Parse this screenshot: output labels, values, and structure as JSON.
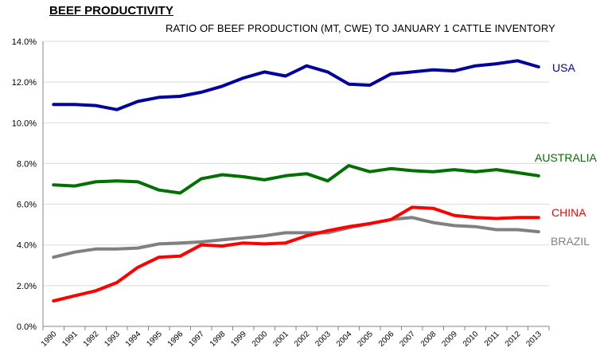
{
  "chart_data": {
    "type": "line",
    "title": "BEEF PRODUCTIVITY",
    "subtitle": "RATIO OF BEEF PRODUCTION (MT, CWE) TO JANUARY 1 CATTLE INVENTORY",
    "x": [
      "1990",
      "1991",
      "1992",
      "1993",
      "1994",
      "1995",
      "1996",
      "1997",
      "1998",
      "1999",
      "2000",
      "2001",
      "2002",
      "2003",
      "2004",
      "2005",
      "2006",
      "2007",
      "2008",
      "2009",
      "2010",
      "2011",
      "2012",
      "2013"
    ],
    "ylim": [
      0,
      14
    ],
    "yticks": [
      "0.0%",
      "2.0%",
      "4.0%",
      "6.0%",
      "8.0%",
      "10.0%",
      "12.0%",
      "14.0%"
    ],
    "grid": true,
    "series": [
      {
        "name": "USA",
        "color": "#00009c",
        "values": [
          10.9,
          10.9,
          10.85,
          10.65,
          11.05,
          11.25,
          11.3,
          11.5,
          11.8,
          12.2,
          12.5,
          12.3,
          12.8,
          12.5,
          11.9,
          11.85,
          12.4,
          12.5,
          12.6,
          12.55,
          12.8,
          12.9,
          13.05,
          12.75
        ]
      },
      {
        "name": "AUSTRALIA",
        "color": "#007000",
        "values": [
          6.95,
          6.9,
          7.1,
          7.15,
          7.1,
          6.7,
          6.55,
          7.25,
          7.45,
          7.35,
          7.2,
          7.4,
          7.5,
          7.15,
          7.9,
          7.6,
          7.75,
          7.65,
          7.6,
          7.7,
          7.6,
          7.7,
          7.55,
          7.4
        ]
      },
      {
        "name": "CHINA",
        "color": "#ff0000",
        "values": [
          1.25,
          1.5,
          1.75,
          2.15,
          2.9,
          3.4,
          3.45,
          4.0,
          3.95,
          4.1,
          4.05,
          4.1,
          4.45,
          4.7,
          4.9,
          5.05,
          5.25,
          5.85,
          5.8,
          5.45,
          5.35,
          5.3,
          5.35,
          5.35
        ]
      },
      {
        "name": "BRAZIL",
        "color": "#808080",
        "values": [
          3.4,
          3.65,
          3.8,
          3.8,
          3.85,
          4.05,
          4.1,
          4.15,
          4.25,
          4.35,
          4.45,
          4.6,
          4.6,
          4.6,
          4.85,
          5.05,
          5.25,
          5.35,
          5.1,
          4.95,
          4.9,
          4.75,
          4.75,
          4.65
        ]
      }
    ]
  }
}
